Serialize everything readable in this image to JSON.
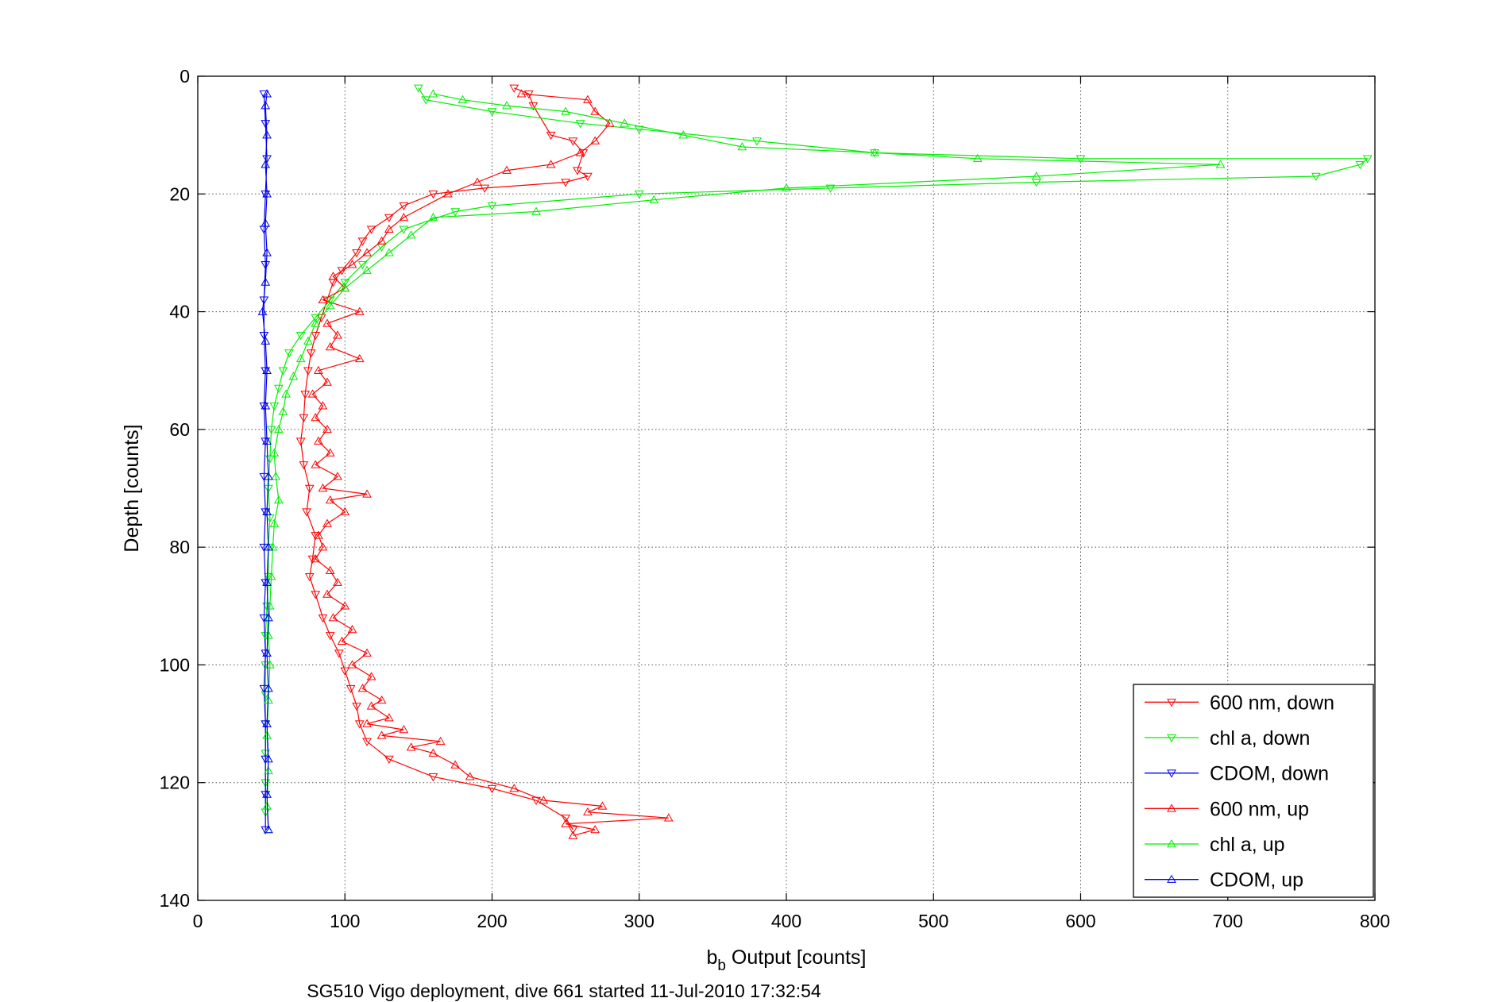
{
  "chart_data": {
    "type": "line",
    "title": "",
    "xlabel": "b",
    "xlabel_sub": "b",
    "xlabel_rest": " Output [counts]",
    "ylabel": "Depth [counts]",
    "caption": "SG510 Vigo deployment, dive 661 started 11-Jul-2010 17:32:54",
    "xlim": [
      0,
      800
    ],
    "ylim": [
      0,
      140
    ],
    "y_reversed": true,
    "grid": true,
    "legend_placement": "bottom-right",
    "xticks": [
      "0",
      "100",
      "200",
      "300",
      "400",
      "500",
      "600",
      "700",
      "800"
    ],
    "yticks": [
      "0",
      "20",
      "40",
      "60",
      "80",
      "100",
      "120",
      "140"
    ],
    "series": [
      {
        "name": "600 nm, down",
        "color": "#ff0000",
        "marker": "triangle-down",
        "points": [
          [
            215,
            2
          ],
          [
            225,
            3
          ],
          [
            228,
            5
          ],
          [
            240,
            10
          ],
          [
            255,
            11
          ],
          [
            262,
            13
          ],
          [
            258,
            16
          ],
          [
            265,
            17
          ],
          [
            250,
            18
          ],
          [
            195,
            19
          ],
          [
            160,
            20
          ],
          [
            140,
            22
          ],
          [
            130,
            24
          ],
          [
            118,
            26
          ],
          [
            112,
            28
          ],
          [
            108,
            30
          ],
          [
            98,
            33
          ],
          [
            92,
            35
          ],
          [
            88,
            38
          ],
          [
            84,
            41
          ],
          [
            80,
            44
          ],
          [
            77,
            47
          ],
          [
            75,
            50
          ],
          [
            73,
            54
          ],
          [
            72,
            58
          ],
          [
            70,
            62
          ],
          [
            72,
            66
          ],
          [
            76,
            70
          ],
          [
            74,
            74
          ],
          [
            80,
            78
          ],
          [
            78,
            82
          ],
          [
            76,
            85
          ],
          [
            80,
            88
          ],
          [
            85,
            92
          ],
          [
            90,
            95
          ],
          [
            96,
            98
          ],
          [
            100,
            101
          ],
          [
            104,
            104
          ],
          [
            108,
            107
          ],
          [
            110,
            110
          ],
          [
            115,
            113
          ],
          [
            130,
            116
          ],
          [
            160,
            119
          ],
          [
            200,
            121
          ],
          [
            230,
            123
          ],
          [
            250,
            126
          ],
          [
            255,
            128
          ]
        ]
      },
      {
        "name": "chl a, down",
        "color": "#00ee00",
        "marker": "triangle-down",
        "points": [
          [
            150,
            2
          ],
          [
            155,
            4
          ],
          [
            200,
            6
          ],
          [
            260,
            8
          ],
          [
            300,
            9
          ],
          [
            380,
            11
          ],
          [
            460,
            13
          ],
          [
            600,
            14
          ],
          [
            795,
            14
          ],
          [
            790,
            15
          ],
          [
            760,
            17
          ],
          [
            570,
            18
          ],
          [
            430,
            19
          ],
          [
            300,
            20
          ],
          [
            200,
            22
          ],
          [
            175,
            23
          ],
          [
            140,
            26
          ],
          [
            125,
            29
          ],
          [
            112,
            32
          ],
          [
            100,
            35
          ],
          [
            90,
            38
          ],
          [
            80,
            41
          ],
          [
            70,
            44
          ],
          [
            62,
            47
          ],
          [
            58,
            50
          ],
          [
            55,
            53
          ],
          [
            52,
            56
          ],
          [
            50,
            60
          ],
          [
            49,
            65
          ],
          [
            48,
            70
          ],
          [
            49,
            75
          ],
          [
            48,
            80
          ],
          [
            48,
            85
          ],
          [
            47,
            90
          ],
          [
            46,
            95
          ],
          [
            46,
            100
          ],
          [
            46,
            105
          ],
          [
            46,
            110
          ],
          [
            46,
            115
          ],
          [
            46,
            120
          ],
          [
            46,
            125
          ]
        ]
      },
      {
        "name": "CDOM, down",
        "color": "#0000ee",
        "marker": "triangle-down",
        "points": [
          [
            45,
            3
          ],
          [
            46,
            8
          ],
          [
            47,
            14
          ],
          [
            46,
            20
          ],
          [
            45,
            26
          ],
          [
            46,
            32
          ],
          [
            45,
            38
          ],
          [
            45,
            44
          ],
          [
            46,
            50
          ],
          [
            45,
            56
          ],
          [
            46,
            62
          ],
          [
            45,
            68
          ],
          [
            46,
            74
          ],
          [
            45,
            80
          ],
          [
            46,
            86
          ],
          [
            45,
            92
          ],
          [
            46,
            98
          ],
          [
            45,
            104
          ],
          [
            46,
            110
          ],
          [
            46,
            116
          ],
          [
            46,
            122
          ],
          [
            46,
            128
          ]
        ]
      },
      {
        "name": "600 nm, up",
        "color": "#ff0000",
        "marker": "triangle-up",
        "points": [
          [
            255,
            129
          ],
          [
            270,
            128
          ],
          [
            250,
            127
          ],
          [
            320,
            126
          ],
          [
            265,
            125
          ],
          [
            275,
            124
          ],
          [
            235,
            123
          ],
          [
            215,
            121
          ],
          [
            185,
            119
          ],
          [
            175,
            117
          ],
          [
            160,
            115
          ],
          [
            145,
            114
          ],
          [
            165,
            113
          ],
          [
            125,
            112
          ],
          [
            140,
            111
          ],
          [
            115,
            110
          ],
          [
            130,
            109
          ],
          [
            118,
            107
          ],
          [
            125,
            106
          ],
          [
            112,
            104
          ],
          [
            118,
            102
          ],
          [
            105,
            100
          ],
          [
            115,
            98
          ],
          [
            98,
            96
          ],
          [
            105,
            94
          ],
          [
            92,
            92
          ],
          [
            100,
            90
          ],
          [
            88,
            88
          ],
          [
            95,
            86
          ],
          [
            90,
            84
          ],
          [
            80,
            82
          ],
          [
            85,
            80
          ],
          [
            82,
            78
          ],
          [
            88,
            76
          ],
          [
            100,
            74
          ],
          [
            90,
            72
          ],
          [
            115,
            71
          ],
          [
            85,
            70
          ],
          [
            95,
            68
          ],
          [
            80,
            66
          ],
          [
            90,
            64
          ],
          [
            82,
            62
          ],
          [
            88,
            60
          ],
          [
            80,
            58
          ],
          [
            85,
            56
          ],
          [
            78,
            54
          ],
          [
            88,
            52
          ],
          [
            82,
            50
          ],
          [
            110,
            48
          ],
          [
            90,
            46
          ],
          [
            95,
            44
          ],
          [
            88,
            42
          ],
          [
            110,
            40
          ],
          [
            85,
            38
          ],
          [
            100,
            36
          ],
          [
            92,
            34
          ],
          [
            105,
            32
          ],
          [
            115,
            30
          ],
          [
            125,
            28
          ],
          [
            130,
            26
          ],
          [
            140,
            24
          ],
          [
            170,
            20
          ],
          [
            190,
            18
          ],
          [
            210,
            16
          ],
          [
            240,
            15
          ],
          [
            260,
            13
          ],
          [
            270,
            11
          ],
          [
            280,
            8
          ],
          [
            270,
            6
          ],
          [
            265,
            4
          ],
          [
            220,
            3
          ]
        ]
      },
      {
        "name": "chl a, up",
        "color": "#00ee00",
        "marker": "triangle-up",
        "points": [
          [
            48,
            128
          ],
          [
            47,
            124
          ],
          [
            48,
            118
          ],
          [
            47,
            112
          ],
          [
            48,
            106
          ],
          [
            49,
            100
          ],
          [
            48,
            95
          ],
          [
            49,
            90
          ],
          [
            50,
            85
          ],
          [
            51,
            80
          ],
          [
            52,
            76
          ],
          [
            55,
            72
          ],
          [
            53,
            68
          ],
          [
            52,
            64
          ],
          [
            55,
            60
          ],
          [
            58,
            57
          ],
          [
            60,
            54
          ],
          [
            65,
            51
          ],
          [
            70,
            48
          ],
          [
            75,
            45
          ],
          [
            80,
            42
          ],
          [
            90,
            39
          ],
          [
            100,
            36
          ],
          [
            115,
            33
          ],
          [
            130,
            30
          ],
          [
            145,
            27
          ],
          [
            160,
            24
          ],
          [
            230,
            23
          ],
          [
            310,
            21
          ],
          [
            400,
            19
          ],
          [
            570,
            17
          ],
          [
            695,
            15
          ],
          [
            530,
            14
          ],
          [
            460,
            13
          ],
          [
            370,
            12
          ],
          [
            330,
            10
          ],
          [
            290,
            8
          ],
          [
            250,
            6
          ],
          [
            210,
            5
          ],
          [
            180,
            4
          ],
          [
            160,
            3
          ]
        ]
      },
      {
        "name": "CDOM, up",
        "color": "#0000ee",
        "marker": "triangle-up",
        "points": [
          [
            48,
            128
          ],
          [
            47,
            122
          ],
          [
            48,
            116
          ],
          [
            47,
            110
          ],
          [
            48,
            104
          ],
          [
            47,
            98
          ],
          [
            48,
            92
          ],
          [
            47,
            86
          ],
          [
            48,
            80
          ],
          [
            47,
            74
          ],
          [
            48,
            68
          ],
          [
            47,
            62
          ],
          [
            46,
            56
          ],
          [
            47,
            50
          ],
          [
            46,
            45
          ],
          [
            44,
            40
          ],
          [
            46,
            35
          ],
          [
            47,
            30
          ],
          [
            46,
            25
          ],
          [
            47,
            20
          ],
          [
            46,
            15
          ],
          [
            47,
            10
          ],
          [
            46,
            5
          ],
          [
            47,
            3
          ]
        ]
      }
    ]
  }
}
